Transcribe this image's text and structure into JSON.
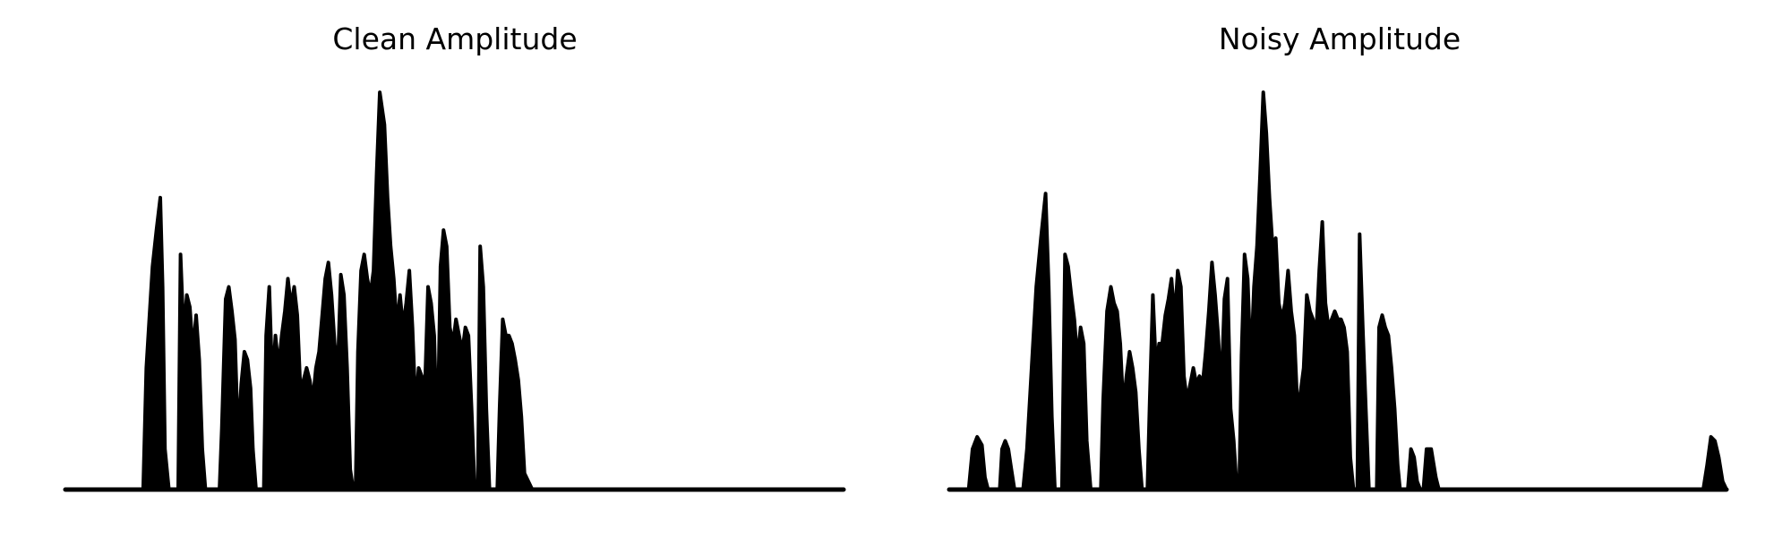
{
  "chart_data": [
    {
      "type": "area",
      "title": "Clean Amplitude",
      "xlabel": "",
      "ylabel": "",
      "axes_visible": false,
      "grid": false,
      "x_range": [
        0,
        1
      ],
      "ylim": [
        0,
        1
      ],
      "color": "#000000",
      "envelope": [
        [
          0.0,
          0.0
        ],
        [
          0.1,
          0.0
        ],
        [
          0.104,
          0.3
        ],
        [
          0.112,
          0.55
        ],
        [
          0.117,
          0.64
        ],
        [
          0.122,
          0.72
        ],
        [
          0.125,
          0.5
        ],
        [
          0.128,
          0.1
        ],
        [
          0.133,
          0.0
        ],
        [
          0.145,
          0.0
        ],
        [
          0.148,
          0.58
        ],
        [
          0.152,
          0.38
        ],
        [
          0.156,
          0.48
        ],
        [
          0.16,
          0.45
        ],
        [
          0.164,
          0.34
        ],
        [
          0.168,
          0.43
        ],
        [
          0.172,
          0.32
        ],
        [
          0.176,
          0.1
        ],
        [
          0.18,
          0.0
        ],
        [
          0.198,
          0.0
        ],
        [
          0.201,
          0.15
        ],
        [
          0.206,
          0.47
        ],
        [
          0.21,
          0.5
        ],
        [
          0.214,
          0.44
        ],
        [
          0.218,
          0.37
        ],
        [
          0.222,
          0.12
        ],
        [
          0.226,
          0.26
        ],
        [
          0.23,
          0.34
        ],
        [
          0.234,
          0.32
        ],
        [
          0.238,
          0.25
        ],
        [
          0.241,
          0.1
        ],
        [
          0.245,
          0.0
        ],
        [
          0.255,
          0.0
        ],
        [
          0.258,
          0.38
        ],
        [
          0.262,
          0.5
        ],
        [
          0.266,
          0.26
        ],
        [
          0.27,
          0.38
        ],
        [
          0.274,
          0.3
        ],
        [
          0.278,
          0.38
        ],
        [
          0.282,
          0.44
        ],
        [
          0.286,
          0.52
        ],
        [
          0.29,
          0.45
        ],
        [
          0.294,
          0.5
        ],
        [
          0.298,
          0.43
        ],
        [
          0.302,
          0.25
        ],
        [
          0.306,
          0.27
        ],
        [
          0.31,
          0.3
        ],
        [
          0.314,
          0.27
        ],
        [
          0.318,
          0.22
        ],
        [
          0.322,
          0.3
        ],
        [
          0.326,
          0.34
        ],
        [
          0.33,
          0.43
        ],
        [
          0.334,
          0.52
        ],
        [
          0.338,
          0.56
        ],
        [
          0.342,
          0.48
        ],
        [
          0.346,
          0.36
        ],
        [
          0.35,
          0.29
        ],
        [
          0.354,
          0.53
        ],
        [
          0.358,
          0.48
        ],
        [
          0.362,
          0.3
        ],
        [
          0.366,
          0.05
        ],
        [
          0.37,
          0.0
        ],
        [
          0.373,
          0.0
        ],
        [
          0.376,
          0.34
        ],
        [
          0.38,
          0.54
        ],
        [
          0.384,
          0.58
        ],
        [
          0.388,
          0.52
        ],
        [
          0.392,
          0.48
        ],
        [
          0.396,
          0.54
        ],
        [
          0.4,
          0.78
        ],
        [
          0.404,
          0.98
        ],
        [
          0.41,
          0.9
        ],
        [
          0.414,
          0.72
        ],
        [
          0.418,
          0.6
        ],
        [
          0.422,
          0.52
        ],
        [
          0.426,
          0.4
        ],
        [
          0.43,
          0.48
        ],
        [
          0.434,
          0.4
        ],
        [
          0.438,
          0.46
        ],
        [
          0.442,
          0.54
        ],
        [
          0.446,
          0.4
        ],
        [
          0.45,
          0.2
        ],
        [
          0.454,
          0.3
        ],
        [
          0.458,
          0.28
        ],
        [
          0.462,
          0.25
        ],
        [
          0.466,
          0.5
        ],
        [
          0.47,
          0.46
        ],
        [
          0.474,
          0.38
        ],
        [
          0.478,
          0.1
        ],
        [
          0.482,
          0.55
        ],
        [
          0.486,
          0.64
        ],
        [
          0.49,
          0.6
        ],
        [
          0.494,
          0.4
        ],
        [
          0.498,
          0.36
        ],
        [
          0.502,
          0.42
        ],
        [
          0.506,
          0.38
        ],
        [
          0.51,
          0.34
        ],
        [
          0.514,
          0.4
        ],
        [
          0.518,
          0.38
        ],
        [
          0.522,
          0.2
        ],
        [
          0.526,
          0.0
        ],
        [
          0.53,
          0.0
        ],
        [
          0.533,
          0.6
        ],
        [
          0.537,
          0.5
        ],
        [
          0.541,
          0.2
        ],
        [
          0.545,
          0.0
        ],
        [
          0.555,
          0.0
        ],
        [
          0.558,
          0.2
        ],
        [
          0.562,
          0.42
        ],
        [
          0.566,
          0.38
        ],
        [
          0.57,
          0.38
        ],
        [
          0.574,
          0.36
        ],
        [
          0.578,
          0.32
        ],
        [
          0.582,
          0.27
        ],
        [
          0.586,
          0.18
        ],
        [
          0.59,
          0.04
        ],
        [
          0.6,
          0.0
        ],
        [
          1.0,
          0.0
        ]
      ]
    },
    {
      "type": "area",
      "title": "Noisy Amplitude",
      "xlabel": "",
      "ylabel": "",
      "axes_visible": false,
      "grid": false,
      "x_range": [
        0,
        1
      ],
      "ylim": [
        0,
        1
      ],
      "color": "#000000",
      "envelope": [
        [
          0.0,
          0.0
        ],
        [
          0.025,
          0.0
        ],
        [
          0.03,
          0.1
        ],
        [
          0.036,
          0.13
        ],
        [
          0.042,
          0.11
        ],
        [
          0.046,
          0.03
        ],
        [
          0.05,
          0.0
        ],
        [
          0.065,
          0.0
        ],
        [
          0.068,
          0.1
        ],
        [
          0.072,
          0.12
        ],
        [
          0.076,
          0.1
        ],
        [
          0.08,
          0.05
        ],
        [
          0.084,
          0.0
        ],
        [
          0.095,
          0.0
        ],
        [
          0.1,
          0.1
        ],
        [
          0.106,
          0.3
        ],
        [
          0.112,
          0.5
        ],
        [
          0.118,
          0.62
        ],
        [
          0.124,
          0.73
        ],
        [
          0.128,
          0.5
        ],
        [
          0.132,
          0.18
        ],
        [
          0.136,
          0.0
        ],
        [
          0.145,
          0.0
        ],
        [
          0.149,
          0.58
        ],
        [
          0.153,
          0.55
        ],
        [
          0.157,
          0.48
        ],
        [
          0.161,
          0.42
        ],
        [
          0.165,
          0.32
        ],
        [
          0.169,
          0.4
        ],
        [
          0.173,
          0.36
        ],
        [
          0.177,
          0.12
        ],
        [
          0.182,
          0.0
        ],
        [
          0.195,
          0.0
        ],
        [
          0.198,
          0.22
        ],
        [
          0.203,
          0.44
        ],
        [
          0.208,
          0.5
        ],
        [
          0.212,
          0.46
        ],
        [
          0.216,
          0.44
        ],
        [
          0.22,
          0.36
        ],
        [
          0.224,
          0.2
        ],
        [
          0.228,
          0.28
        ],
        [
          0.232,
          0.34
        ],
        [
          0.236,
          0.3
        ],
        [
          0.24,
          0.24
        ],
        [
          0.244,
          0.1
        ],
        [
          0.248,
          0.0
        ],
        [
          0.255,
          0.0
        ],
        [
          0.258,
          0.22
        ],
        [
          0.262,
          0.48
        ],
        [
          0.266,
          0.3
        ],
        [
          0.27,
          0.36
        ],
        [
          0.274,
          0.36
        ],
        [
          0.278,
          0.43
        ],
        [
          0.282,
          0.47
        ],
        [
          0.286,
          0.52
        ],
        [
          0.29,
          0.42
        ],
        [
          0.294,
          0.54
        ],
        [
          0.298,
          0.5
        ],
        [
          0.302,
          0.28
        ],
        [
          0.306,
          0.22
        ],
        [
          0.31,
          0.26
        ],
        [
          0.314,
          0.3
        ],
        [
          0.318,
          0.26
        ],
        [
          0.322,
          0.28
        ],
        [
          0.326,
          0.26
        ],
        [
          0.33,
          0.34
        ],
        [
          0.334,
          0.44
        ],
        [
          0.338,
          0.56
        ],
        [
          0.342,
          0.48
        ],
        [
          0.346,
          0.38
        ],
        [
          0.35,
          0.24
        ],
        [
          0.354,
          0.47
        ],
        [
          0.358,
          0.52
        ],
        [
          0.362,
          0.2
        ],
        [
          0.366,
          0.12
        ],
        [
          0.37,
          0.0
        ],
        [
          0.373,
          0.0
        ],
        [
          0.376,
          0.33
        ],
        [
          0.38,
          0.58
        ],
        [
          0.384,
          0.52
        ],
        [
          0.388,
          0.3
        ],
        [
          0.392,
          0.5
        ],
        [
          0.396,
          0.6
        ],
        [
          0.4,
          0.78
        ],
        [
          0.404,
          0.98
        ],
        [
          0.408,
          0.88
        ],
        [
          0.412,
          0.72
        ],
        [
          0.416,
          0.6
        ],
        [
          0.42,
          0.62
        ],
        [
          0.424,
          0.46
        ],
        [
          0.428,
          0.42
        ],
        [
          0.432,
          0.46
        ],
        [
          0.436,
          0.54
        ],
        [
          0.44,
          0.44
        ],
        [
          0.444,
          0.38
        ],
        [
          0.448,
          0.2
        ],
        [
          0.452,
          0.24
        ],
        [
          0.456,
          0.3
        ],
        [
          0.46,
          0.48
        ],
        [
          0.464,
          0.44
        ],
        [
          0.468,
          0.42
        ],
        [
          0.472,
          0.38
        ],
        [
          0.476,
          0.54
        ],
        [
          0.48,
          0.66
        ],
        [
          0.484,
          0.46
        ],
        [
          0.488,
          0.4
        ],
        [
          0.492,
          0.42
        ],
        [
          0.496,
          0.44
        ],
        [
          0.5,
          0.42
        ],
        [
          0.504,
          0.42
        ],
        [
          0.508,
          0.4
        ],
        [
          0.512,
          0.34
        ],
        [
          0.516,
          0.08
        ],
        [
          0.52,
          0.0
        ],
        [
          0.525,
          0.0
        ],
        [
          0.528,
          0.63
        ],
        [
          0.532,
          0.4
        ],
        [
          0.536,
          0.2
        ],
        [
          0.54,
          0.0
        ],
        [
          0.55,
          0.0
        ],
        [
          0.553,
          0.4
        ],
        [
          0.557,
          0.43
        ],
        [
          0.561,
          0.4
        ],
        [
          0.565,
          0.38
        ],
        [
          0.569,
          0.3
        ],
        [
          0.573,
          0.2
        ],
        [
          0.577,
          0.06
        ],
        [
          0.58,
          0.0
        ],
        [
          0.59,
          0.0
        ],
        [
          0.594,
          0.1
        ],
        [
          0.598,
          0.08
        ],
        [
          0.602,
          0.02
        ],
        [
          0.606,
          0.0
        ],
        [
          0.61,
          0.0
        ],
        [
          0.614,
          0.1
        ],
        [
          0.62,
          0.1
        ],
        [
          0.626,
          0.03
        ],
        [
          0.63,
          0.0
        ],
        [
          0.97,
          0.0
        ],
        [
          0.975,
          0.06
        ],
        [
          0.98,
          0.13
        ],
        [
          0.985,
          0.12
        ],
        [
          0.99,
          0.08
        ],
        [
          0.995,
          0.02
        ],
        [
          1.0,
          0.0
        ]
      ]
    }
  ]
}
